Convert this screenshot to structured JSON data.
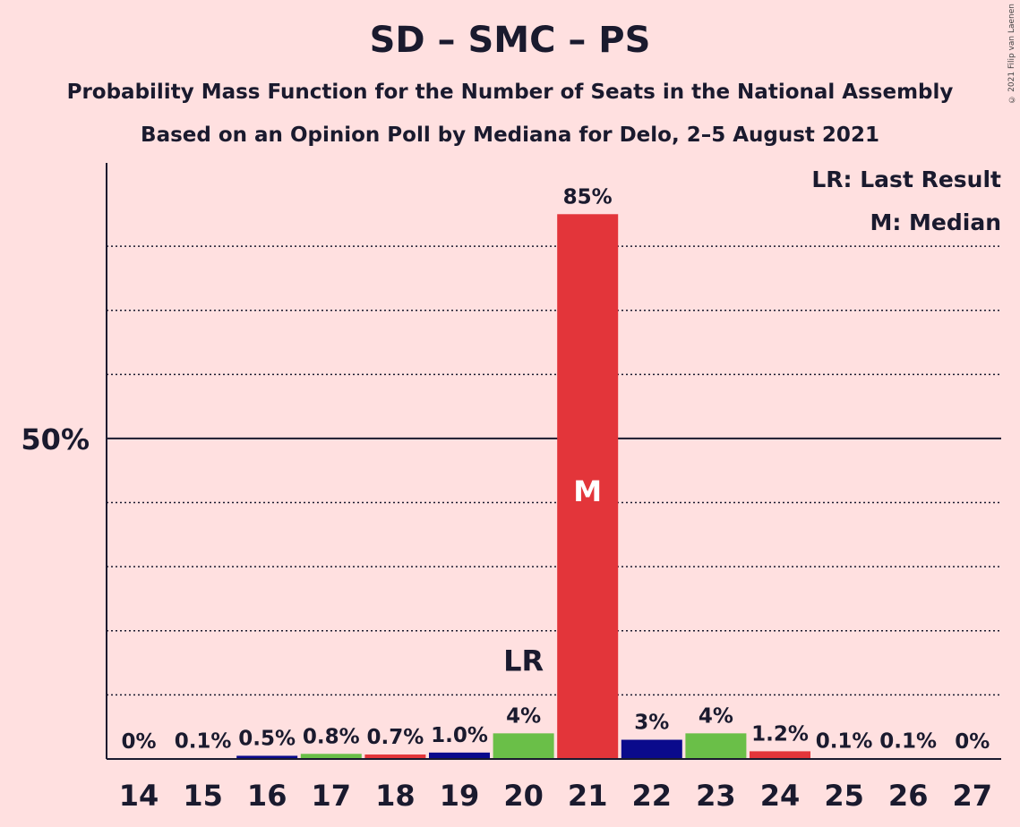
{
  "title": "SD – SMC – PS",
  "subtitle1": "Probability Mass Function for the Number of Seats in the National Assembly",
  "subtitle2": "Based on an Opinion Poll by Mediana for Delo, 2–5 August 2021",
  "copyright": "© 2021 Filip van Laenen",
  "legend": {
    "lr": "LR: Last Result",
    "m": "M: Median"
  },
  "y_tick_label": "50%",
  "chart_data": {
    "type": "bar",
    "categories": [
      "14",
      "15",
      "16",
      "17",
      "18",
      "19",
      "20",
      "21",
      "22",
      "23",
      "24",
      "25",
      "26",
      "27"
    ],
    "values": [
      0,
      0.1,
      0.5,
      0.8,
      0.7,
      1.0,
      4,
      85,
      3,
      4,
      1.2,
      0.1,
      0.1,
      0
    ],
    "labels": [
      "0%",
      "0.1%",
      "0.5%",
      "0.8%",
      "0.7%",
      "1.0%",
      "4%",
      "85%",
      "3%",
      "4%",
      "1.2%",
      "0.1%",
      "0.1%",
      "0%"
    ],
    "colors": [
      "#0a0a8c",
      "#e3353a",
      "#0a0a8c",
      "#6abf48",
      "#e3353a",
      "#0a0a8c",
      "#6abf48",
      "#e3353a",
      "#0a0a8c",
      "#6abf48",
      "#e3353a",
      "#0a0a8c",
      "#6abf48",
      "#e3353a"
    ],
    "ylim": [
      0,
      93
    ],
    "gridlines": [
      10,
      20,
      30,
      40,
      60,
      70,
      80
    ],
    "major_line": 50,
    "last_result": {
      "category": "20",
      "label": "LR"
    },
    "median": {
      "category": "21",
      "label": "M"
    }
  }
}
